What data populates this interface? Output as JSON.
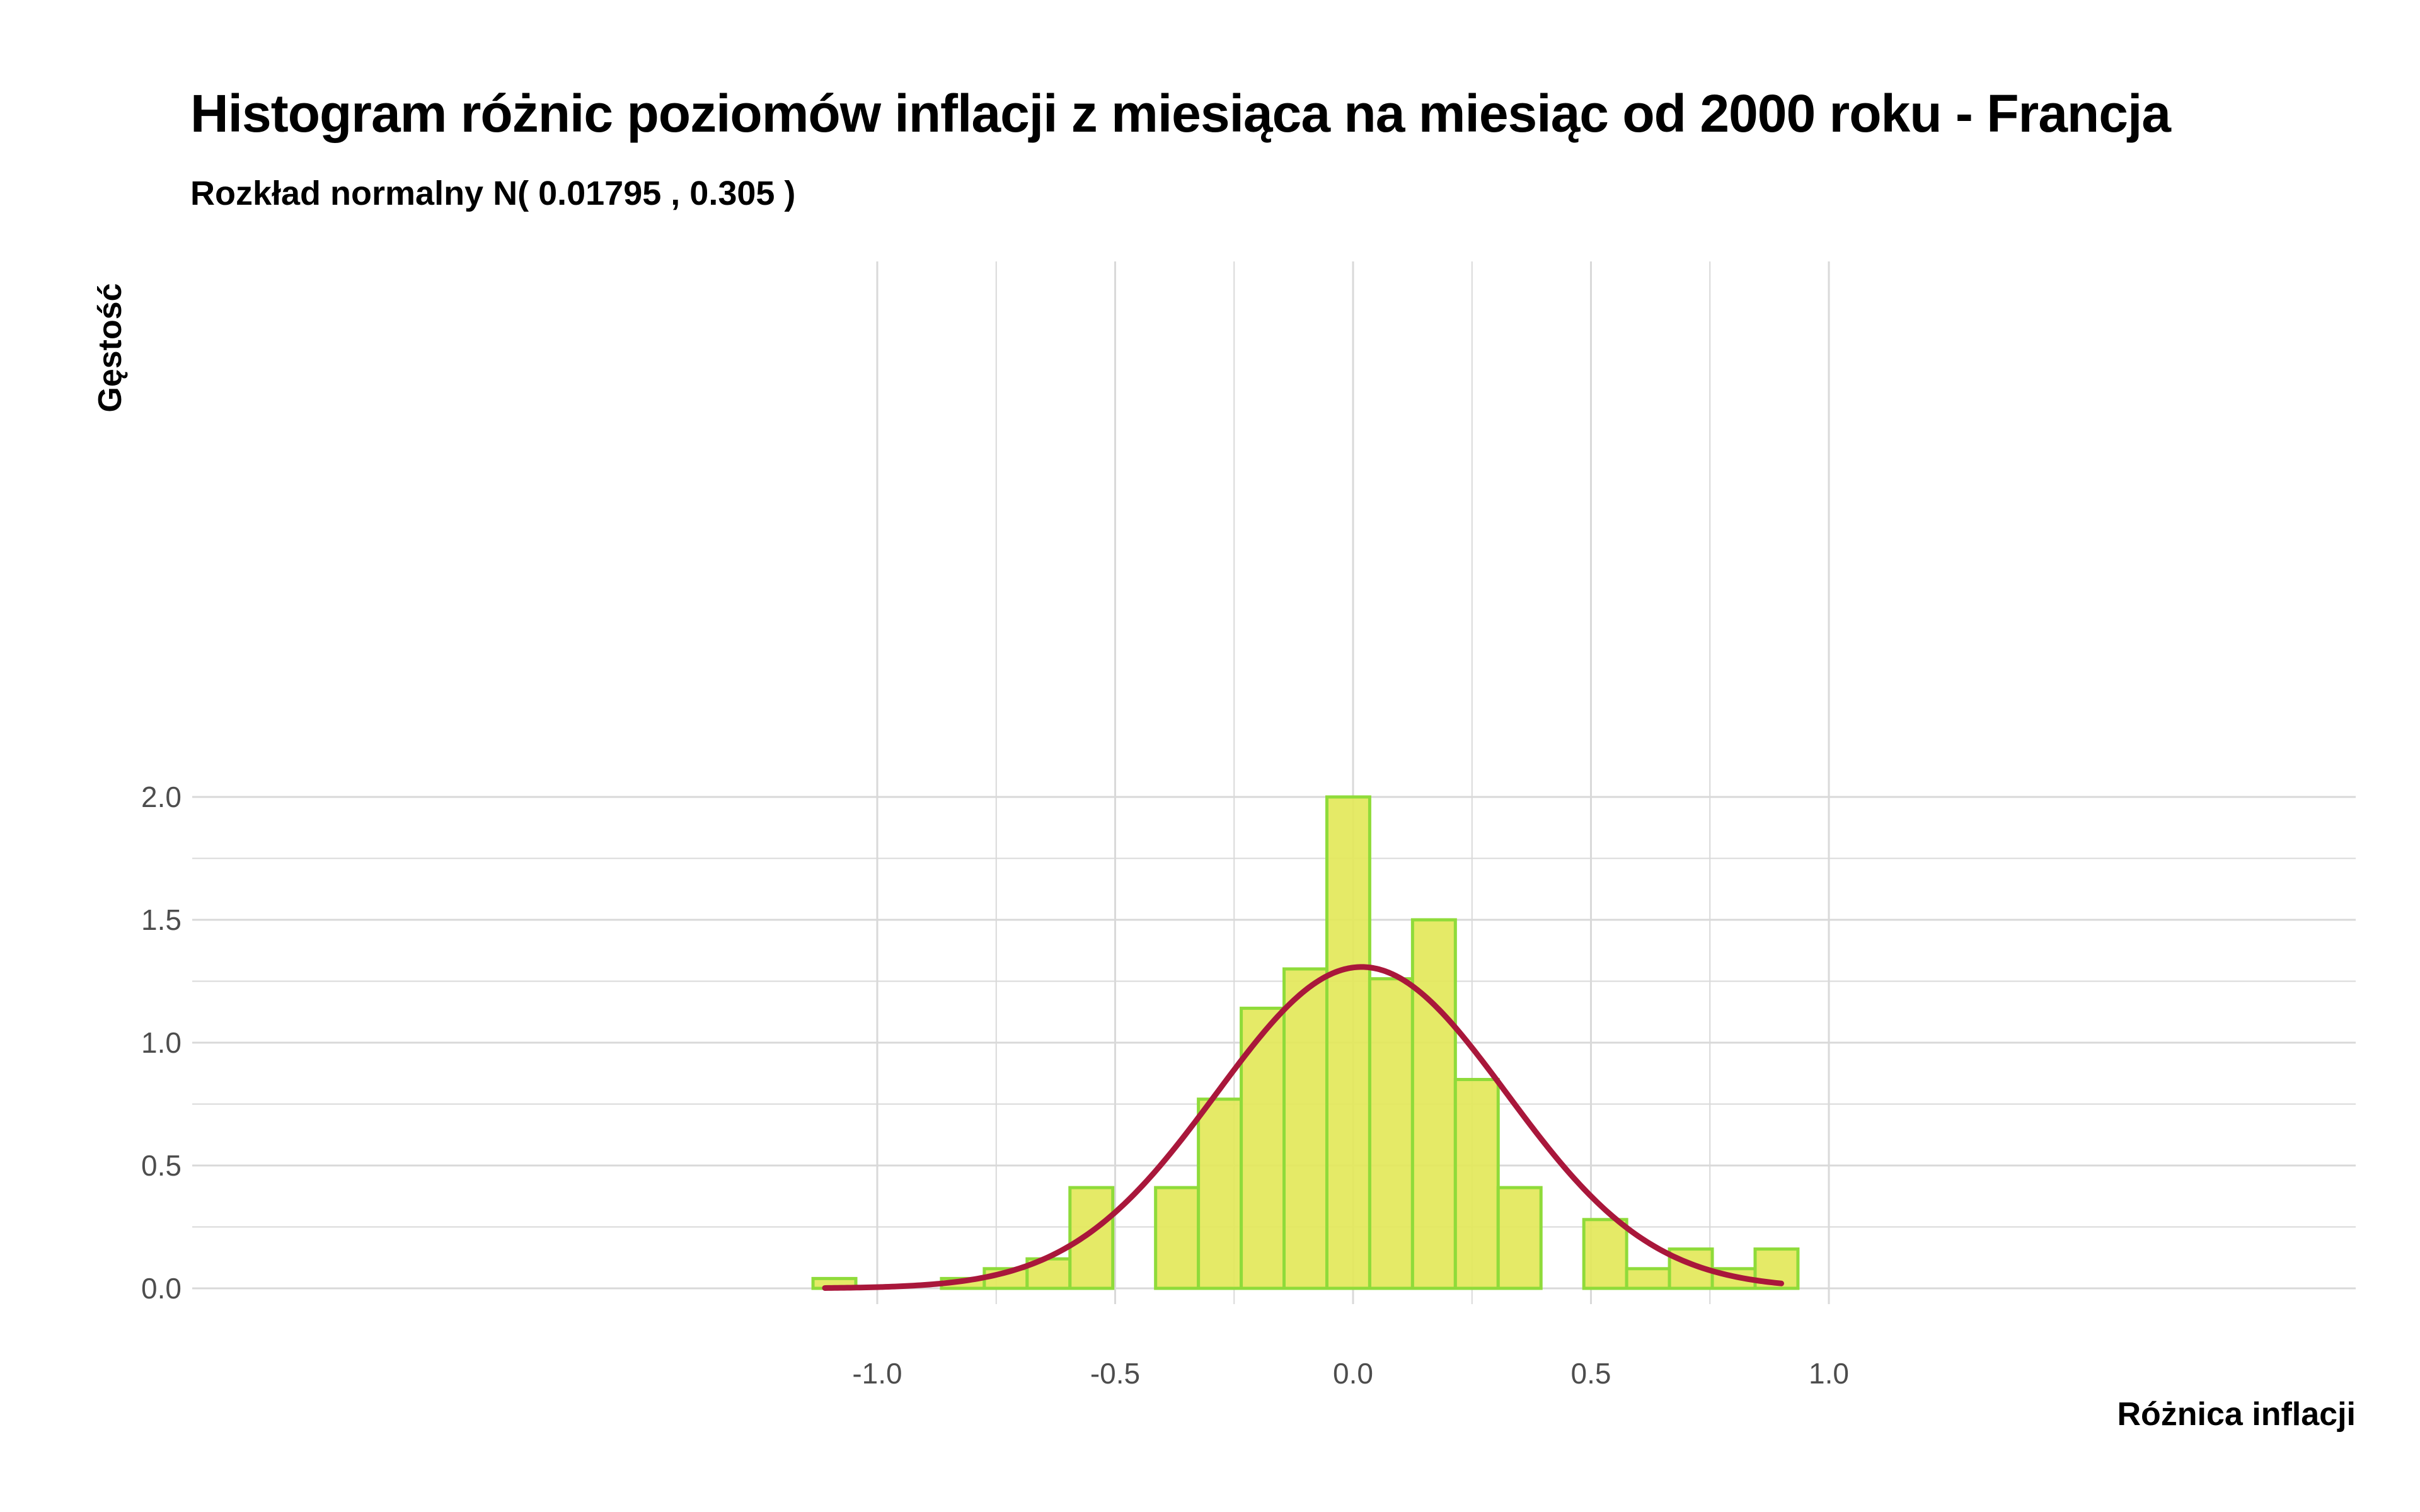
{
  "chart_data": {
    "type": "bar",
    "title": "Histogram różnic poziomów inflacji z miesiąca na miesiąc od 2000 roku  -  Francja",
    "subtitle": "Rozkład normalny N( 0.01795 ,  0.305 )",
    "xlabel": "Różnica inflacji",
    "ylabel": "Gęstość",
    "xlim": [
      -1.18,
      1.05
    ],
    "ylim": [
      0,
      2.1
    ],
    "x_ticks": [
      -1.0,
      -0.5,
      0.0,
      0.5,
      1.0
    ],
    "x_tick_labels": [
      "-1.0",
      "-0.5",
      "0.0",
      "0.5",
      "1.0"
    ],
    "y_ticks": [
      0.0,
      0.5,
      1.0,
      1.5,
      2.0
    ],
    "y_tick_labels": [
      "0.0",
      "0.5",
      "1.0",
      "1.5",
      "2.0"
    ],
    "grid": true,
    "bin_width": 0.09,
    "bins": [
      {
        "start": -1.135,
        "end": -1.045,
        "density": 0.04
      },
      {
        "start": -1.045,
        "end": -0.955,
        "density": 0.0
      },
      {
        "start": -0.955,
        "end": -0.865,
        "density": 0.0
      },
      {
        "start": -0.865,
        "end": -0.775,
        "density": 0.04
      },
      {
        "start": -0.775,
        "end": -0.685,
        "density": 0.08
      },
      {
        "start": -0.685,
        "end": -0.595,
        "density": 0.12
      },
      {
        "start": -0.595,
        "end": -0.505,
        "density": 0.41
      },
      {
        "start": -0.505,
        "end": -0.415,
        "density": 0.0
      },
      {
        "start": -0.415,
        "end": -0.325,
        "density": 0.41
      },
      {
        "start": -0.325,
        "end": -0.235,
        "density": 0.77
      },
      {
        "start": -0.235,
        "end": -0.145,
        "density": 1.14
      },
      {
        "start": -0.145,
        "end": -0.055,
        "density": 1.3
      },
      {
        "start": -0.055,
        "end": 0.035,
        "density": 2.0
      },
      {
        "start": 0.035,
        "end": 0.125,
        "density": 1.26
      },
      {
        "start": 0.125,
        "end": 0.215,
        "density": 1.5
      },
      {
        "start": 0.215,
        "end": 0.305,
        "density": 0.85
      },
      {
        "start": 0.305,
        "end": 0.395,
        "density": 0.41
      },
      {
        "start": 0.395,
        "end": 0.485,
        "density": 0.0
      },
      {
        "start": 0.485,
        "end": 0.575,
        "density": 0.28
      },
      {
        "start": 0.575,
        "end": 0.665,
        "density": 0.08
      },
      {
        "start": 0.665,
        "end": 0.755,
        "density": 0.16
      },
      {
        "start": 0.755,
        "end": 0.845,
        "density": 0.08
      },
      {
        "start": 0.845,
        "end": 0.935,
        "density": 0.16
      }
    ],
    "normal_curve": {
      "mean": 0.01795,
      "sd": 0.305,
      "x_from": -1.11,
      "x_to": 0.9
    },
    "colors": {
      "bar_fill": "#e3e85a",
      "bar_stroke": "#8fdb3a",
      "curve": "#a9173b",
      "grid": "#d9d9d9"
    }
  }
}
